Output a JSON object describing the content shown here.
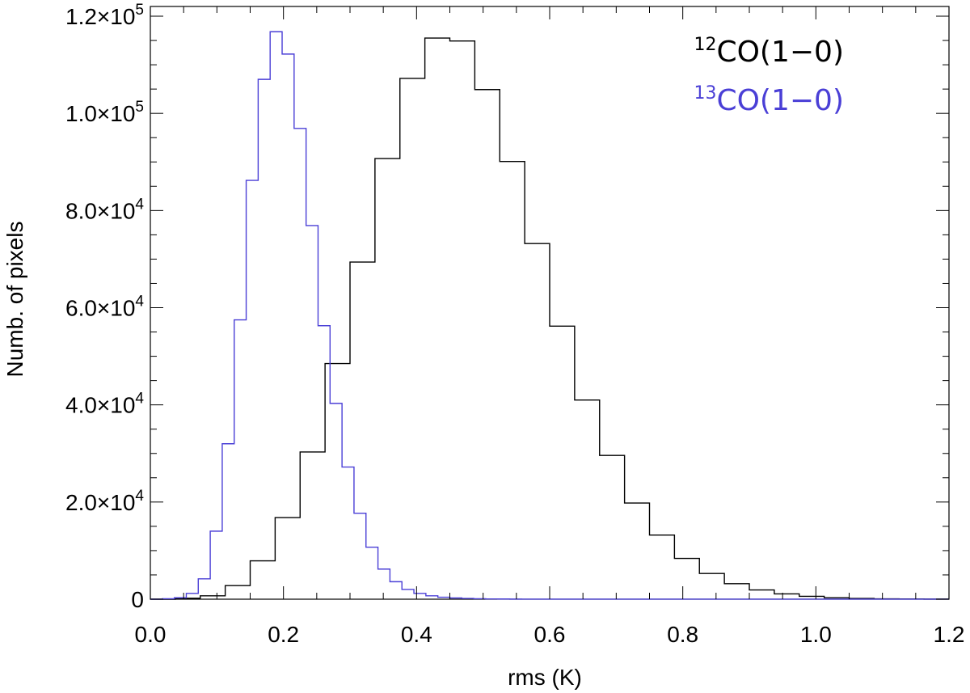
{
  "chart_data": {
    "type": "histogram",
    "xlabel": "rms (K)",
    "ylabel": "Numb. of pixels",
    "xlim": [
      0.0,
      1.2
    ],
    "ylim": [
      0,
      117000
    ],
    "xticks": [
      {
        "value": 0.0,
        "label": "0.0"
      },
      {
        "value": 0.2,
        "label": "0.2"
      },
      {
        "value": 0.4,
        "label": "0.4"
      },
      {
        "value": 0.6,
        "label": "0.6"
      },
      {
        "value": 0.8,
        "label": "0.8"
      },
      {
        "value": 1.0,
        "label": "1.0"
      },
      {
        "value": 1.2,
        "label": "1.2"
      }
    ],
    "yticks": [
      {
        "value": 0,
        "label": "0",
        "base": "",
        "exp": ""
      },
      {
        "value": 20000,
        "label": "2.0×10^4",
        "base": "2.0×10",
        "exp": "4"
      },
      {
        "value": 40000,
        "label": "4.0×10^4",
        "base": "4.0×10",
        "exp": "4"
      },
      {
        "value": 60000,
        "label": "6.0×10^4",
        "base": "6.0×10",
        "exp": "4"
      },
      {
        "value": 80000,
        "label": "8.0×10^4",
        "base": "8.0×10",
        "exp": "4"
      },
      {
        "value": 100000,
        "label": "1.0×10^5",
        "base": "1.0×10",
        "exp": "5"
      },
      {
        "value": 120000,
        "label": "1.2×10^5",
        "base": "1.2×10",
        "exp": "5"
      }
    ],
    "bin_edges": [
      0.0,
      0.02,
      0.04,
      0.06,
      0.08,
      0.1,
      0.12,
      0.14,
      0.16,
      0.18,
      0.2,
      0.22,
      0.24,
      0.26,
      0.28,
      0.3,
      0.32,
      0.34,
      0.36,
      0.38,
      0.4,
      0.42,
      0.44,
      0.46,
      0.48,
      0.5,
      0.52,
      0.54,
      0.56,
      0.58,
      0.6,
      0.62,
      0.64,
      0.66,
      0.68,
      0.7,
      0.72,
      0.74,
      0.76,
      0.78,
      0.8,
      0.82,
      0.84,
      0.86,
      0.88,
      0.9,
      0.92,
      0.94,
      0.96,
      0.98,
      1.0,
      1.02,
      1.04,
      1.06,
      1.08,
      1.1,
      1.12,
      1.14,
      1.16,
      1.18,
      1.2
    ],
    "series": [
      {
        "name_sup": "12",
        "name_main": "CO(1−0)",
        "color": "#000000",
        "bin_edges": [
          0.0,
          0.0375,
          0.075,
          0.1125,
          0.15,
          0.1875,
          0.225,
          0.2625,
          0.3,
          0.3375,
          0.375,
          0.4125,
          0.45,
          0.4875,
          0.525,
          0.5625,
          0.6,
          0.6375,
          0.675,
          0.7125,
          0.75,
          0.7875,
          0.825,
          0.8625,
          0.9,
          0.9375,
          0.975,
          1.0125,
          1.05,
          1.0875,
          1.125,
          1.1625,
          1.2
        ],
        "values": [
          0,
          200,
          700,
          2800,
          7900,
          16800,
          30300,
          48500,
          69400,
          90700,
          107200,
          115500,
          114900,
          104900,
          90100,
          73200,
          56200,
          41000,
          29600,
          19800,
          13200,
          8400,
          5300,
          3200,
          1900,
          1100,
          600,
          300,
          150,
          80,
          40,
          20
        ]
      },
      {
        "name_sup": "13",
        "name_main": "CO(1−0)",
        "color": "#4a3fd6",
        "bin_edges": [
          0.0,
          0.018,
          0.036,
          0.054,
          0.072,
          0.09,
          0.108,
          0.126,
          0.144,
          0.162,
          0.18,
          0.198,
          0.216,
          0.234,
          0.252,
          0.27,
          0.288,
          0.306,
          0.324,
          0.342,
          0.36,
          0.378,
          0.396,
          0.414,
          0.432,
          0.45,
          0.468,
          0.486,
          0.504,
          0.522,
          0.54,
          0.558,
          0.576,
          0.594,
          0.612,
          0.63,
          0.648,
          0.666,
          0.684,
          0.702,
          0.72,
          0.738,
          0.756,
          0.774,
          0.792,
          0.81,
          0.828,
          0.846,
          0.864,
          0.882,
          0.9,
          0.918,
          0.936,
          0.954,
          0.972,
          0.99,
          1.008,
          1.026,
          1.044,
          1.062,
          1.08,
          1.098,
          1.116,
          1.134,
          1.152,
          1.17,
          1.188,
          1.2
        ],
        "values": [
          0,
          100,
          300,
          1200,
          4200,
          14000,
          32000,
          57500,
          86200,
          107000,
          116800,
          112200,
          96900,
          76900,
          56300,
          40300,
          27200,
          17700,
          10700,
          6200,
          3600,
          2000,
          1200,
          700,
          400,
          250,
          150,
          100,
          60,
          40,
          20,
          10,
          5,
          5,
          5,
          5,
          5,
          5,
          5,
          5,
          5,
          5,
          5,
          5,
          5,
          5,
          5,
          5,
          5,
          5,
          5,
          5,
          5,
          5,
          5,
          5,
          5,
          5,
          5,
          5,
          5,
          5,
          5,
          5,
          5,
          5,
          5
        ]
      }
    ],
    "legend_position": "top-right",
    "grid": false
  }
}
